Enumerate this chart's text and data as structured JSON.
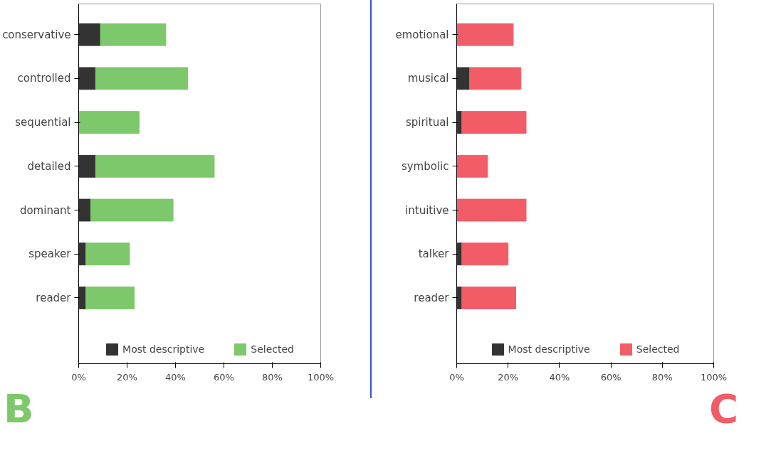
{
  "chart_data": [
    {
      "type": "bar",
      "orientation": "horizontal",
      "stacked": true,
      "categories": [
        "conservative",
        "controlled",
        "sequential",
        "detailed",
        "dominant",
        "speaker",
        "reader"
      ],
      "series": [
        {
          "name": "Most descriptive",
          "color": "#333333",
          "values": [
            9,
            7,
            0,
            7,
            5,
            3,
            3
          ]
        },
        {
          "name": "Selected",
          "color": "#7dc86a",
          "values": [
            27,
            38,
            25,
            49,
            34,
            18,
            20
          ]
        }
      ],
      "xlim": [
        0,
        100
      ],
      "xticks": [
        {
          "value": 0,
          "label": "0%"
        },
        {
          "value": 20,
          "label": "20%"
        },
        {
          "value": 40,
          "label": "40%"
        },
        {
          "value": 60,
          "label": "60%"
        },
        {
          "value": 80,
          "label": "80%"
        },
        {
          "value": 100,
          "label": "100%"
        }
      ],
      "grid": false,
      "legend": "bottom",
      "annotations": [
        "B"
      ]
    },
    {
      "type": "bar",
      "orientation": "horizontal",
      "stacked": true,
      "categories": [
        "emotional",
        "musical",
        "spiritual",
        "symbolic",
        "intuitive",
        "talker",
        "reader"
      ],
      "series": [
        {
          "name": "Most descriptive",
          "color": "#333333",
          "values": [
            0,
            5,
            2,
            0,
            0,
            2,
            2
          ]
        },
        {
          "name": "Selected",
          "color": "#f25c66",
          "values": [
            22,
            20,
            25,
            12,
            27,
            18,
            21
          ]
        }
      ],
      "xlim": [
        0,
        100
      ],
      "xticks": [
        {
          "value": 0,
          "label": "0%"
        },
        {
          "value": 20,
          "label": "20%"
        },
        {
          "value": 40,
          "label": "40%"
        },
        {
          "value": 60,
          "label": "60%"
        },
        {
          "value": 80,
          "label": "80%"
        },
        {
          "value": 100,
          "label": "100%"
        }
      ],
      "grid": false,
      "legend": "bottom",
      "annotations": [
        "C"
      ]
    }
  ]
}
